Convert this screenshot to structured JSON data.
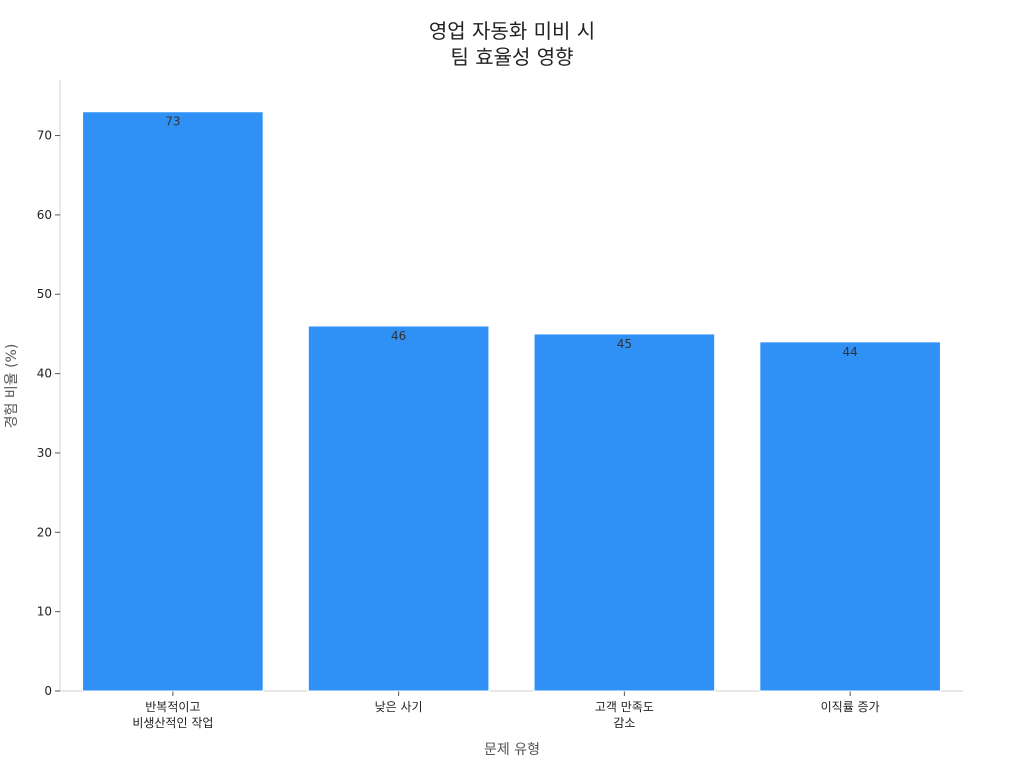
{
  "chart_data": {
    "type": "bar",
    "title_lines": [
      "영업 자동화 미비 시",
      "팀 효율성 영향"
    ],
    "xlabel": "문제 유형",
    "ylabel": "경험 비율 (%)",
    "categories": [
      [
        "반복적이고",
        "비생산적인 작업"
      ],
      [
        "낮은 사기"
      ],
      [
        "고객 만족도",
        "감소"
      ],
      [
        "이직률 증가"
      ]
    ],
    "values": [
      73,
      46,
      45,
      44
    ],
    "data_labels": [
      "73",
      "46",
      "45",
      "44"
    ],
    "ylim": [
      0,
      77
    ],
    "yticks": [
      0,
      10,
      20,
      30,
      40,
      50,
      60,
      70
    ],
    "bar_color": "#2f91f6",
    "grid": false,
    "legend": "none"
  }
}
